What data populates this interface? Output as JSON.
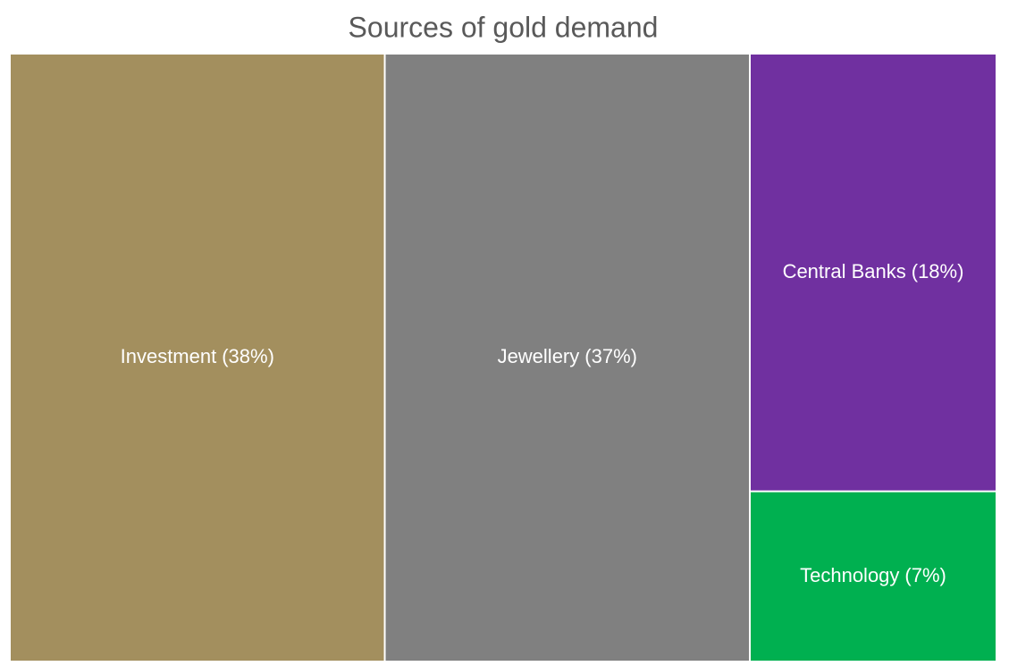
{
  "chart_data": {
    "type": "treemap",
    "title": "Sources of gold demand",
    "categories": [
      "Investment",
      "Jewellery",
      "Central Banks",
      "Technology"
    ],
    "values": [
      38,
      37,
      18,
      7
    ],
    "value_labels": [
      "(38%)",
      "(37%)",
      "(18%)",
      "(7%)"
    ],
    "colors": [
      "#a38f5e",
      "#808080",
      "#7030a0",
      "#00b050"
    ]
  }
}
